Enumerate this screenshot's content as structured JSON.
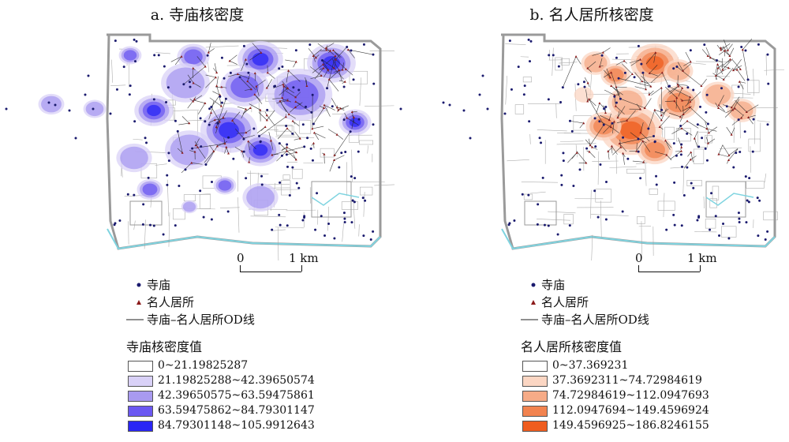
{
  "panels": [
    {
      "id": "a",
      "title": "a. 寺庙核密度",
      "density_title": "寺庙核密度值",
      "density_color": "#5b4cf0",
      "classes": [
        {
          "label": "0~21.19825287",
          "color": "#ffffff"
        },
        {
          "label": "21.19825288~42.39650574",
          "color": "#d9d1f7"
        },
        {
          "label": "42.39650575~63.59475861",
          "color": "#a89af0"
        },
        {
          "label": "63.59475862~84.79301147",
          "color": "#6b58f2"
        },
        {
          "label": "84.79301148~105.9912643",
          "color": "#2a26f5"
        }
      ]
    },
    {
      "id": "b",
      "title": "b. 名人居所核密度",
      "density_title": "名人居所核密度值",
      "density_color": "#f0773d",
      "classes": [
        {
          "label": "0~37.369231",
          "color": "#ffffff"
        },
        {
          "label": "37.3692311~74.72984619",
          "color": "#fbd6c3"
        },
        {
          "label": "74.72984619~112.0947693",
          "color": "#f6ab87"
        },
        {
          "label": "112.0947694~149.4596924",
          "color": "#f2834f"
        },
        {
          "label": "149.4596925~186.8246155",
          "color": "#ef5d1f"
        }
      ]
    }
  ],
  "legend": {
    "temple": "寺庙",
    "residence": "名人居所",
    "od_line": "寺庙–名人居所OD线"
  },
  "scale": {
    "zero": "0",
    "one": "1 km"
  },
  "colors": {
    "temple_dot": "#1a1a6e",
    "residence_marker": "#8b1a1a",
    "od_line": "#222222",
    "river": "#7fd4e0",
    "street": "#9a9a9a"
  }
}
